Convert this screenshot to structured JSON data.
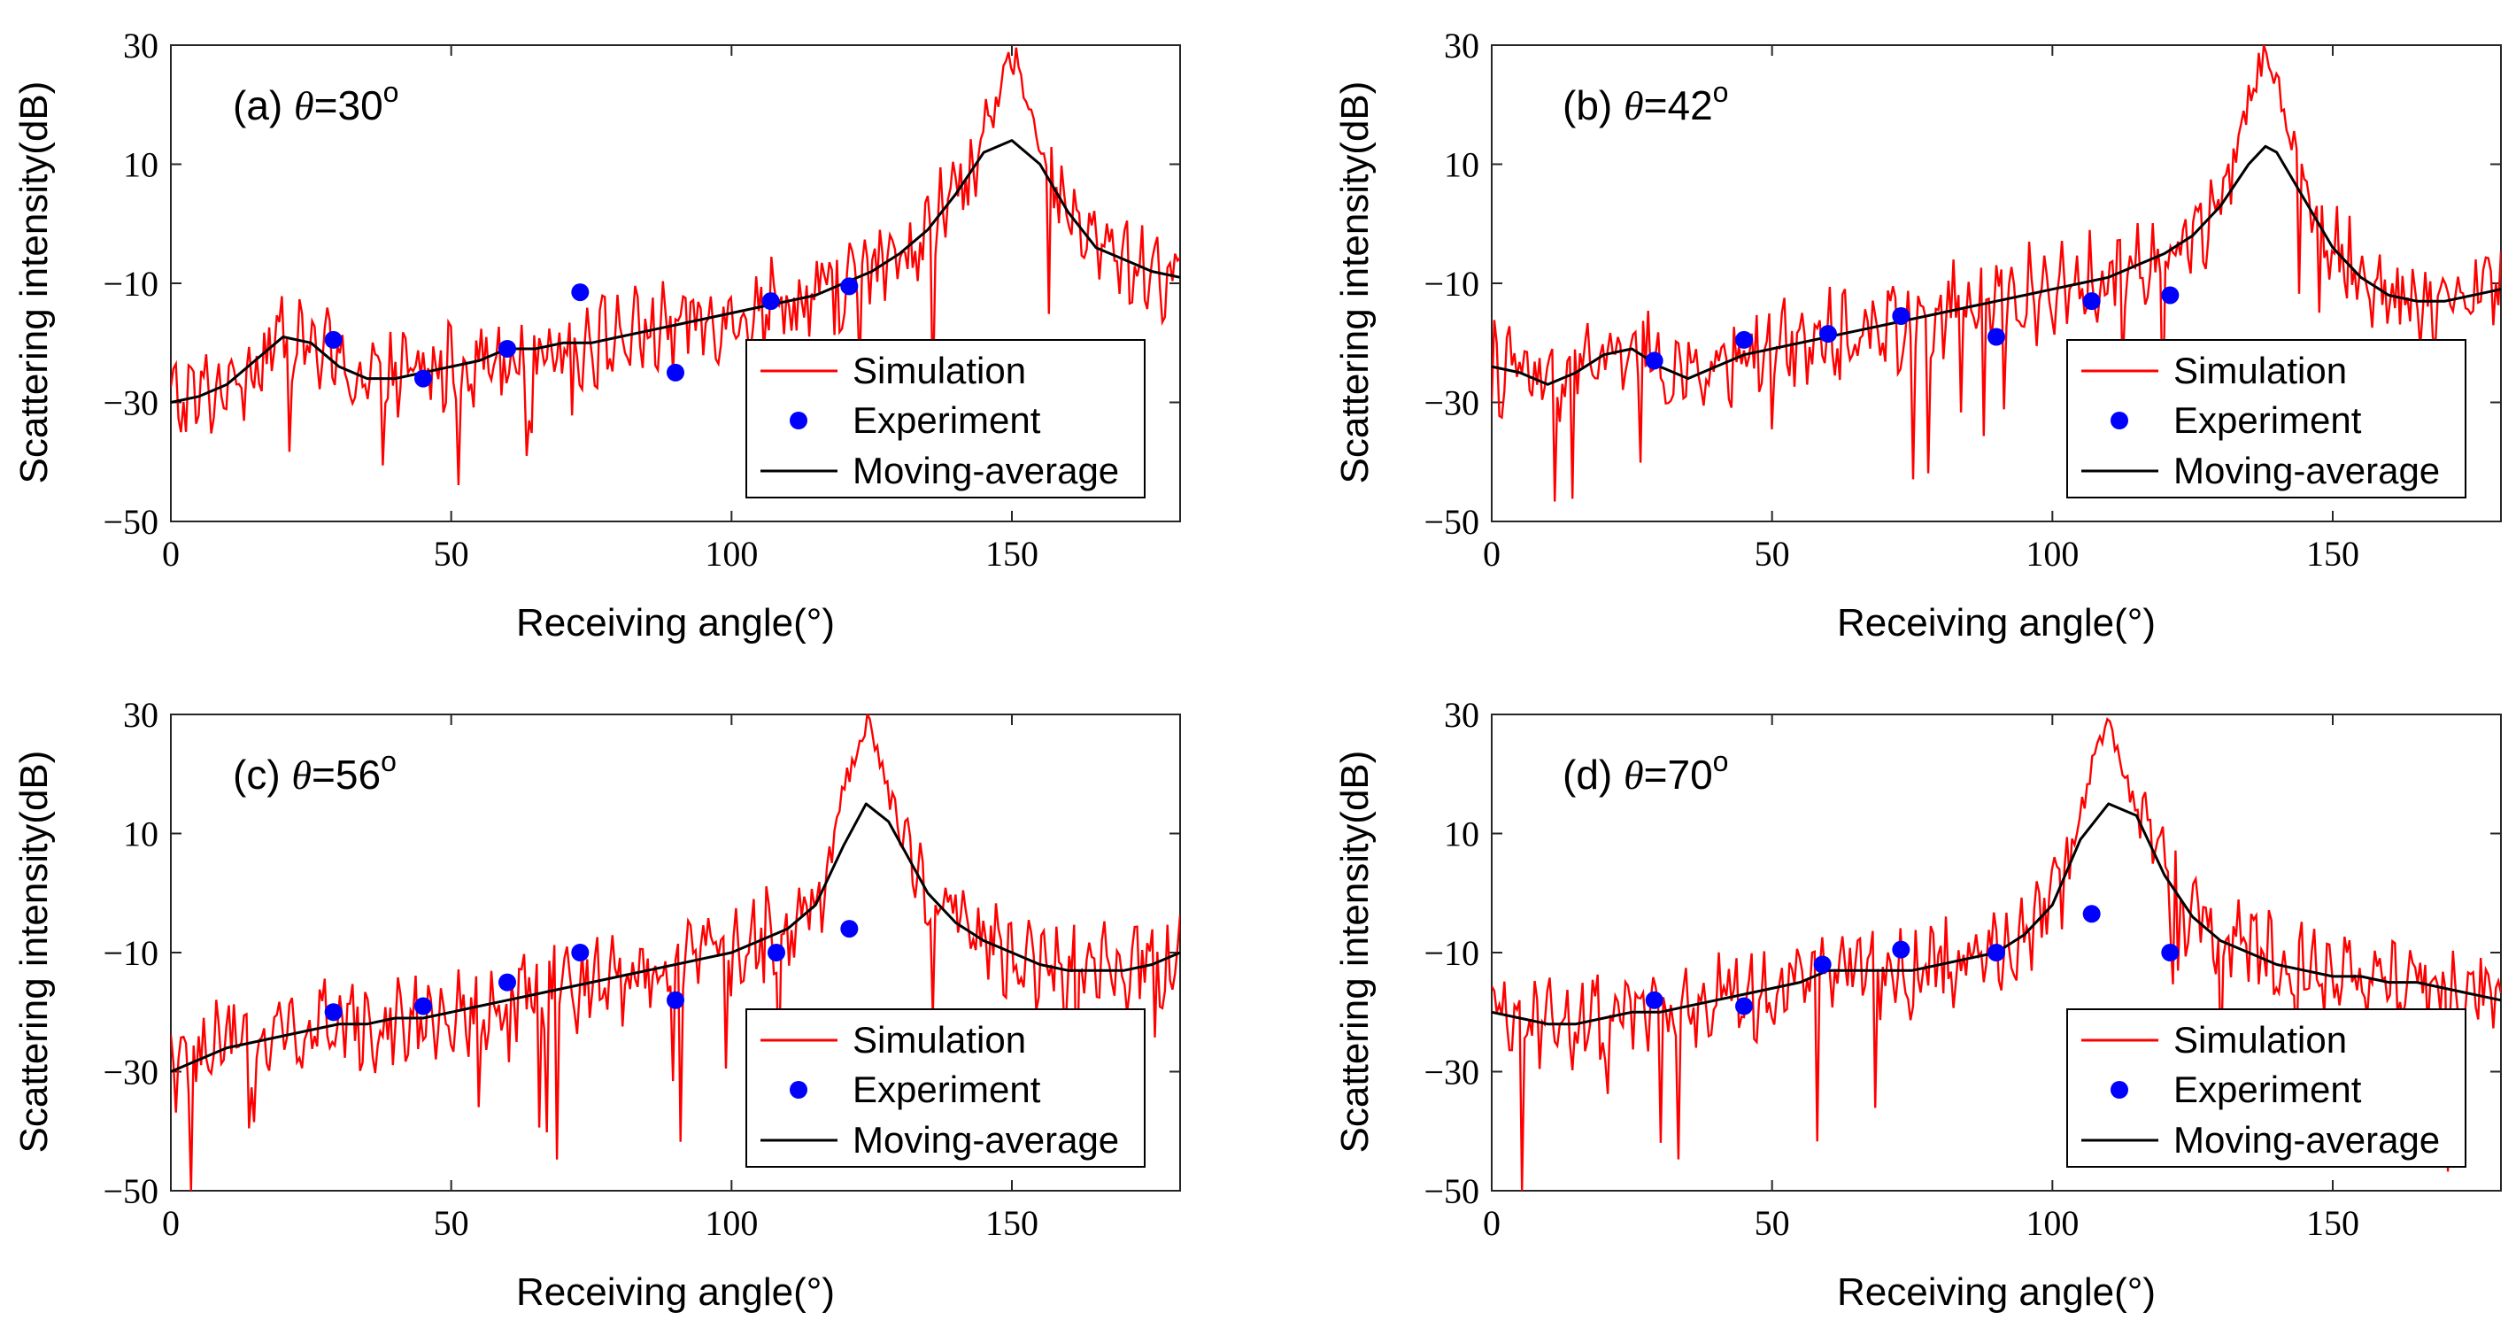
{
  "figure": {
    "xlabel": "Receiving angle(°)",
    "ylabel": "Scattering intensity(dB)",
    "xlim": [
      0,
      180
    ],
    "ylim": [
      -50,
      30
    ],
    "xticks": [
      0,
      50,
      100,
      150
    ],
    "yticks": [
      30,
      10,
      -10,
      -30,
      -50
    ],
    "ytick_labels": [
      "30",
      "10",
      "−10",
      "−30",
      "−50"
    ],
    "legend": [
      "Simulation",
      "Experiment",
      "Moving-average"
    ],
    "colors": {
      "simulation": "#ff0000",
      "experiment": "#0000ff",
      "moving_average": "#000000"
    }
  },
  "chart_data": [
    {
      "type": "line",
      "panel_label": "(a)",
      "theta_symbol": "θ",
      "theta_value": "=30",
      "degree_mark": "o",
      "peak_angle": 150,
      "peak_value": 29,
      "series": [
        {
          "name": "Simulation",
          "type": "line",
          "role": "simulation"
        },
        {
          "name": "Moving-average",
          "type": "line",
          "role": "moving_average",
          "x": [
            0,
            5,
            10,
            15,
            20,
            25,
            30,
            35,
            40,
            45,
            50,
            55,
            60,
            65,
            70,
            75,
            80,
            85,
            90,
            95,
            100,
            105,
            110,
            115,
            120,
            125,
            130,
            135,
            140,
            145,
            150,
            155,
            160,
            165,
            170,
            175,
            180
          ],
          "y": [
            -30,
            -29,
            -27,
            -23,
            -19,
            -20,
            -24,
            -26,
            -26,
            -25,
            -24,
            -23,
            -21,
            -21,
            -20,
            -20,
            -19,
            -18,
            -17,
            -16,
            -15,
            -14,
            -13,
            -12,
            -10,
            -8,
            -5,
            -1,
            5,
            12,
            14,
            10,
            2,
            -4,
            -6,
            -8,
            -9
          ]
        },
        {
          "name": "Experiment",
          "type": "scatter",
          "role": "experiment",
          "x": [
            29,
            45,
            60,
            73,
            90,
            107,
            121
          ],
          "y": [
            -19.5,
            -26,
            -21,
            -11.5,
            -25,
            -13,
            -10.5
          ]
        }
      ]
    },
    {
      "type": "line",
      "panel_label": "(b)",
      "theta_symbol": "θ",
      "theta_value": "=42",
      "degree_mark": "o",
      "peak_angle": 138,
      "peak_value": 30,
      "series": [
        {
          "name": "Simulation",
          "type": "line",
          "role": "simulation"
        },
        {
          "name": "Moving-average",
          "type": "line",
          "role": "moving_average",
          "x": [
            0,
            5,
            10,
            15,
            20,
            25,
            30,
            35,
            40,
            45,
            50,
            55,
            60,
            65,
            70,
            75,
            80,
            85,
            90,
            95,
            100,
            105,
            110,
            115,
            120,
            125,
            130,
            135,
            138,
            140,
            145,
            150,
            155,
            160,
            165,
            170,
            175,
            180
          ],
          "y": [
            -24,
            -25,
            -27,
            -25,
            -22,
            -21,
            -24,
            -26,
            -24,
            -22,
            -21,
            -20,
            -19,
            -18,
            -17,
            -16,
            -15,
            -14,
            -13,
            -12,
            -11,
            -10,
            -9,
            -7,
            -5,
            -2,
            3,
            10,
            13,
            12,
            4,
            -4,
            -9,
            -12,
            -13,
            -13,
            -12,
            -11
          ]
        },
        {
          "name": "Experiment",
          "type": "scatter",
          "role": "experiment",
          "x": [
            29,
            45,
            60,
            73,
            90,
            107,
            121
          ],
          "y": [
            -23,
            -19.5,
            -18.5,
            -15.5,
            -19,
            -13,
            -12
          ]
        }
      ]
    },
    {
      "type": "line",
      "panel_label": "(c)",
      "theta_symbol": "θ",
      "theta_value": "=56",
      "degree_mark": "o",
      "peak_angle": 124,
      "peak_value": 30,
      "series": [
        {
          "name": "Simulation",
          "type": "line",
          "role": "simulation"
        },
        {
          "name": "Moving-average",
          "type": "line",
          "role": "moving_average",
          "x": [
            0,
            5,
            10,
            15,
            20,
            25,
            30,
            35,
            40,
            45,
            50,
            55,
            60,
            65,
            70,
            75,
            80,
            85,
            90,
            95,
            100,
            105,
            110,
            115,
            120,
            124,
            128,
            135,
            140,
            145,
            150,
            155,
            160,
            165,
            170,
            175,
            180
          ],
          "y": [
            -30,
            -28,
            -26,
            -25,
            -24,
            -23,
            -22,
            -22,
            -21,
            -21,
            -20,
            -19,
            -18,
            -17,
            -16,
            -15,
            -14,
            -13,
            -12,
            -11,
            -10,
            -8,
            -6,
            -2,
            8,
            15,
            12,
            0,
            -5,
            -8,
            -10,
            -12,
            -13,
            -13,
            -13,
            -12,
            -10
          ]
        },
        {
          "name": "Experiment",
          "type": "scatter",
          "role": "experiment",
          "x": [
            29,
            45,
            60,
            73,
            90,
            108,
            121
          ],
          "y": [
            -20,
            -19,
            -15,
            -10,
            -18,
            -10,
            -6
          ]
        }
      ]
    },
    {
      "type": "line",
      "panel_label": "(d)",
      "theta_symbol": "θ",
      "theta_value": "=70",
      "degree_mark": "o",
      "peak_angle": 110,
      "peak_value": 30,
      "series": [
        {
          "name": "Simulation",
          "type": "line",
          "role": "simulation"
        },
        {
          "name": "Moving-average",
          "type": "line",
          "role": "moving_average",
          "x": [
            0,
            5,
            10,
            15,
            20,
            25,
            30,
            35,
            40,
            45,
            50,
            55,
            60,
            65,
            70,
            75,
            80,
            85,
            90,
            95,
            100,
            105,
            110,
            115,
            120,
            125,
            130,
            135,
            140,
            145,
            150,
            155,
            160,
            165,
            170,
            175,
            180
          ],
          "y": [
            -20,
            -21,
            -22,
            -22,
            -21,
            -20,
            -20,
            -19,
            -18,
            -17,
            -16,
            -15,
            -13,
            -13,
            -13,
            -13,
            -12,
            -11,
            -10,
            -7,
            -2,
            9,
            15,
            13,
            3,
            -4,
            -8,
            -10,
            -12,
            -13,
            -14,
            -14,
            -15,
            -15,
            -16,
            -17,
            -18
          ]
        },
        {
          "name": "Experiment",
          "type": "scatter",
          "role": "experiment",
          "x": [
            29,
            45,
            59,
            73,
            90,
            107,
            121
          ],
          "y": [
            -18,
            -19,
            -12,
            -9.5,
            -10,
            -3.5,
            -10
          ]
        }
      ]
    }
  ]
}
